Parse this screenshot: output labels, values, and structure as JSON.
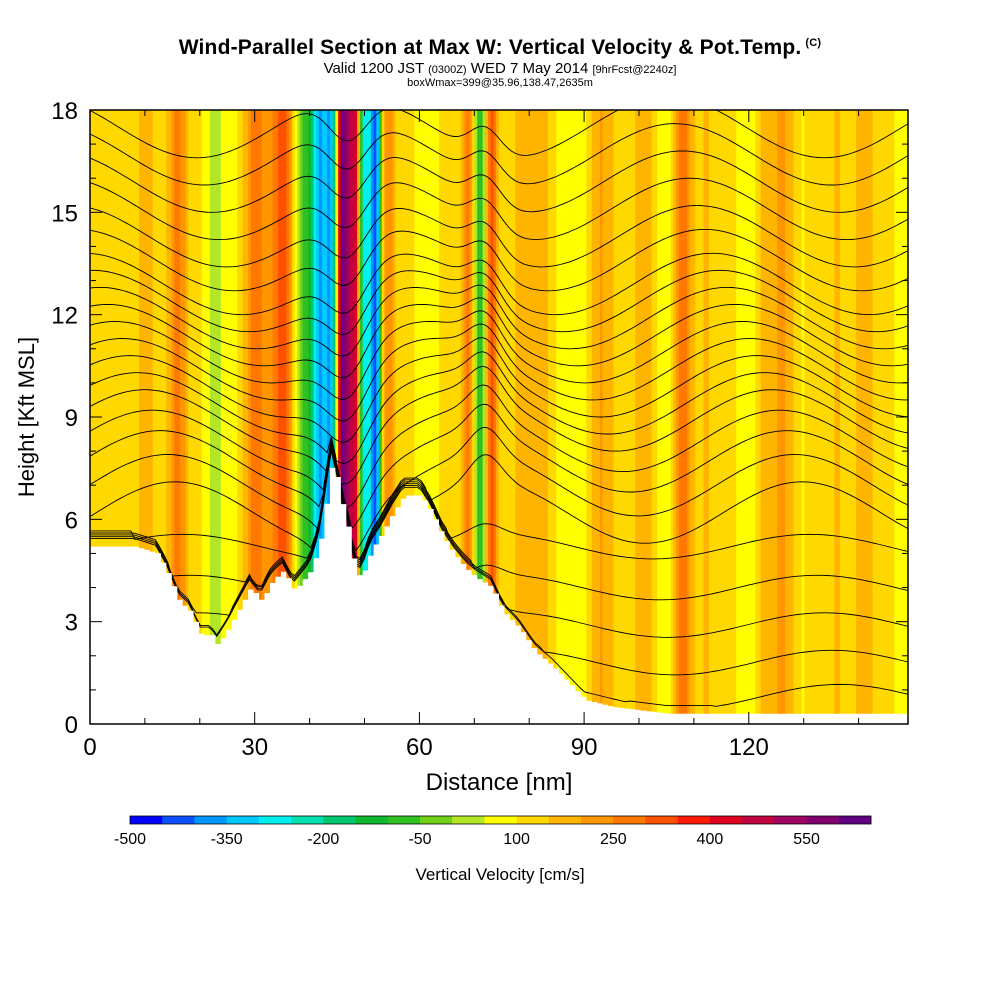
{
  "title": {
    "main": "Wind-Parallel Section at Max W: Vertical Velocity & Pot.Temp.",
    "copyright": "(C)",
    "valid_prefix": "Valid 1200 JST",
    "valid_utc": "(0300Z)",
    "valid_date": "WED 7 May 2014",
    "forecast": "[9hrFcst@2240z]",
    "box_info": "boxWmax=399@35.96,138.47,2635m"
  },
  "chart_data": {
    "type": "heatmap",
    "xlabel": "Distance [nm]",
    "ylabel": "Height [Kft MSL]",
    "xlim": [
      0,
      149
    ],
    "ylim": [
      0,
      18
    ],
    "x_ticks": [
      "0",
      "30",
      "60",
      "90",
      "120"
    ],
    "x_tick_values": [
      0,
      30,
      60,
      90,
      120
    ],
    "y_ticks": [
      "0",
      "3",
      "6",
      "9",
      "12",
      "15",
      "18"
    ],
    "y_tick_values": [
      0,
      3,
      6,
      9,
      12,
      15,
      18
    ],
    "colorbar": {
      "label": "Vertical Velocity [cm/s]",
      "tick_labels": [
        "-500",
        "-350",
        "-200",
        "-50",
        "100",
        "250",
        "400",
        "550"
      ],
      "tick_values": [
        -500,
        -350,
        -200,
        -50,
        100,
        250,
        400,
        550
      ],
      "colors": [
        "#0000ff",
        "#0a50ff",
        "#0096ff",
        "#00c8ff",
        "#00f0f0",
        "#00e0b0",
        "#00c870",
        "#10b830",
        "#30c020",
        "#70d018",
        "#b4e628",
        "#ffff00",
        "#ffd800",
        "#ffb400",
        "#ff9600",
        "#ff7800",
        "#ff5000",
        "#ff1a00",
        "#e00020",
        "#c00040",
        "#a00060",
        "#800070",
        "#600080"
      ]
    },
    "terrain_kft": [
      [
        0,
        5.2
      ],
      [
        8,
        5.2
      ],
      [
        12,
        5.0
      ],
      [
        14,
        4.4
      ],
      [
        16,
        3.6
      ],
      [
        18,
        3.3
      ],
      [
        20,
        2.6
      ],
      [
        22,
        2.6
      ],
      [
        23,
        2.3
      ],
      [
        25,
        2.8
      ],
      [
        27,
        3.4
      ],
      [
        29,
        4.0
      ],
      [
        31,
        3.6
      ],
      [
        33,
        4.2
      ],
      [
        35,
        4.5
      ],
      [
        37,
        3.9
      ],
      [
        39,
        4.3
      ],
      [
        40,
        4.5
      ],
      [
        41,
        5.0
      ],
      [
        42,
        5.6
      ],
      [
        43,
        6.8
      ],
      [
        44,
        7.8
      ],
      [
        46,
        6.2
      ],
      [
        47,
        5.6
      ],
      [
        48,
        4.5
      ],
      [
        49,
        4.3
      ],
      [
        50,
        4.6
      ],
      [
        51,
        5.1
      ],
      [
        53,
        5.6
      ],
      [
        55,
        6.2
      ],
      [
        57,
        6.7
      ],
      [
        60,
        6.7
      ],
      [
        62,
        6.2
      ],
      [
        64,
        5.5
      ],
      [
        66,
        5.0
      ],
      [
        68,
        4.6
      ],
      [
        70,
        4.3
      ],
      [
        73,
        4.0
      ],
      [
        75,
        3.3
      ],
      [
        78,
        2.8
      ],
      [
        81,
        2.1
      ],
      [
        84,
        1.7
      ],
      [
        87,
        1.2
      ],
      [
        90,
        0.7
      ],
      [
        95,
        0.5
      ],
      [
        100,
        0.4
      ],
      [
        105,
        0.3
      ],
      [
        149,
        0.3
      ]
    ],
    "w_features": [
      {
        "x": 2,
        "width": 2,
        "w": 20
      },
      {
        "x": 10,
        "width": 3,
        "w": 90
      },
      {
        "x": 16,
        "width": 2,
        "w": 150
      },
      {
        "x": 22,
        "width": 2,
        "w": -60
      },
      {
        "x": 30,
        "width": 2.5,
        "w": 180
      },
      {
        "x": 35,
        "width": 2,
        "w": 200
      },
      {
        "x": 40,
        "width": 2,
        "w": -200
      },
      {
        "x": 42,
        "width": 1.3,
        "w": -320
      },
      {
        "x": 44,
        "width": 1.2,
        "w": -400
      },
      {
        "x": 46,
        "width": 1.1,
        "w": 520
      },
      {
        "x": 48,
        "width": 1.2,
        "w": 380
      },
      {
        "x": 50,
        "width": 1.1,
        "w": -420
      },
      {
        "x": 52,
        "width": 1.1,
        "w": -520
      },
      {
        "x": 54,
        "width": 1.3,
        "w": 150
      },
      {
        "x": 57,
        "width": 2,
        "w": 80
      },
      {
        "x": 62,
        "width": 3,
        "w": -30
      },
      {
        "x": 69,
        "width": 1.5,
        "w": 160
      },
      {
        "x": 71,
        "width": 1.2,
        "w": -200
      },
      {
        "x": 73,
        "width": 1.2,
        "w": 240
      },
      {
        "x": 80,
        "width": 5,
        "w": 60
      },
      {
        "x": 93,
        "width": 3,
        "w": 80
      },
      {
        "x": 101,
        "width": 2,
        "w": 110
      },
      {
        "x": 108,
        "width": 2,
        "w": 150
      },
      {
        "x": 115,
        "width": 4,
        "w": 30
      },
      {
        "x": 125,
        "width": 3,
        "w": 90
      },
      {
        "x": 135,
        "width": 3,
        "w": 70
      },
      {
        "x": 141,
        "width": 2.5,
        "w": 50
      }
    ],
    "theta_contours_kft": [
      0.8,
      1.8,
      2.9,
      4.0,
      5.2,
      6.2,
      7.0,
      7.7,
      8.3,
      8.9,
      9.4,
      9.9,
      10.4,
      10.9,
      11.4,
      11.9,
      12.4,
      12.9,
      13.6,
      14.3,
      15.1,
      15.9,
      16.7,
      17.5
    ]
  }
}
